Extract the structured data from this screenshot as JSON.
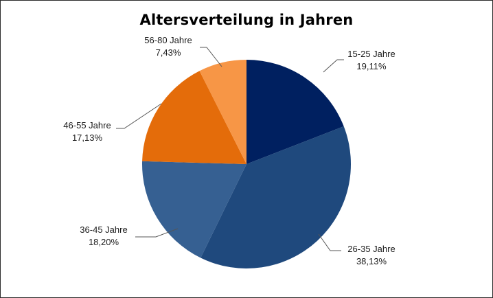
{
  "chart_data": {
    "type": "pie",
    "title": "Altersverteilung in Jahren",
    "slices": [
      {
        "label": "15-25 Jahre",
        "value": 19.11,
        "value_text": "19,11%",
        "color": "#002060"
      },
      {
        "label": "26-35 Jahre",
        "value": 38.13,
        "value_text": "38,13%",
        "color": "#1F497D"
      },
      {
        "label": "36-45 Jahre",
        "value": 18.2,
        "value_text": "18,20%",
        "color": "#366092"
      },
      {
        "label": "46-55 Jahre",
        "value": 17.13,
        "value_text": "17,13%",
        "color": "#E46C0A"
      },
      {
        "label": "56-80 Jahre",
        "value": 7.43,
        "value_text": "7,43%",
        "color": "#F79646"
      }
    ],
    "legend": "none",
    "data_labels": "outside-with-leader-lines"
  }
}
